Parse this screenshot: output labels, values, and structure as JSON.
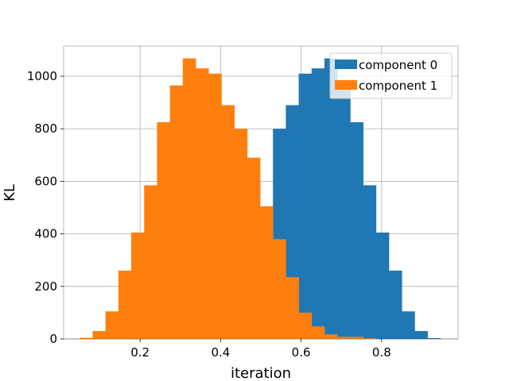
{
  "chart_data": {
    "type": "bar",
    "title": "",
    "xlabel": "iteration",
    "ylabel": "KL",
    "xlim": [
      0.01,
      0.99
    ],
    "ylim": [
      0,
      1115
    ],
    "grid": true,
    "legend_position": "top-right",
    "x_ticks": [
      0.2,
      0.4,
      0.6,
      0.8
    ],
    "x_tick_labels": [
      "0.2",
      "0.4",
      "0.6",
      "0.8"
    ],
    "y_ticks": [
      0,
      200,
      400,
      600,
      800,
      1000
    ],
    "y_tick_labels": [
      "0",
      "200",
      "400",
      "600",
      "800",
      "1000"
    ],
    "series": [
      {
        "name": "component 0",
        "color": "#1f77b4",
        "bins": [
          [
            0.282,
            0.314,
            4
          ],
          [
            0.314,
            0.346,
            40
          ],
          [
            0.346,
            0.378,
            130
          ],
          [
            0.378,
            0.41,
            290
          ],
          [
            0.41,
            0.442,
            460
          ],
          [
            0.442,
            0.474,
            560
          ],
          [
            0.474,
            0.498,
            600
          ],
          [
            0.498,
            0.53,
            470
          ],
          [
            0.53,
            0.562,
            800
          ],
          [
            0.562,
            0.594,
            890
          ],
          [
            0.594,
            0.626,
            1010
          ],
          [
            0.626,
            0.658,
            1030
          ],
          [
            0.658,
            0.69,
            1068
          ],
          [
            0.69,
            0.722,
            960
          ],
          [
            0.722,
            0.754,
            825
          ],
          [
            0.754,
            0.786,
            585
          ],
          [
            0.786,
            0.818,
            405
          ],
          [
            0.818,
            0.85,
            260
          ],
          [
            0.85,
            0.882,
            105
          ],
          [
            0.882,
            0.914,
            30
          ],
          [
            0.914,
            0.946,
            3
          ]
        ]
      },
      {
        "name": "component 1",
        "color": "#ff7f0e",
        "bins": [
          [
            0.05,
            0.082,
            4
          ],
          [
            0.082,
            0.114,
            30
          ],
          [
            0.114,
            0.146,
            105
          ],
          [
            0.146,
            0.178,
            260
          ],
          [
            0.178,
            0.21,
            405
          ],
          [
            0.21,
            0.242,
            585
          ],
          [
            0.242,
            0.274,
            825
          ],
          [
            0.274,
            0.306,
            965
          ],
          [
            0.306,
            0.338,
            1068
          ],
          [
            0.338,
            0.37,
            1030
          ],
          [
            0.37,
            0.402,
            1010
          ],
          [
            0.402,
            0.434,
            890
          ],
          [
            0.434,
            0.466,
            800
          ],
          [
            0.466,
            0.498,
            690
          ],
          [
            0.498,
            0.53,
            505
          ],
          [
            0.53,
            0.562,
            380
          ],
          [
            0.562,
            0.594,
            235
          ],
          [
            0.594,
            0.626,
            100
          ],
          [
            0.626,
            0.658,
            48
          ],
          [
            0.658,
            0.69,
            17
          ],
          [
            0.69,
            0.722,
            8
          ],
          [
            0.722,
            0.754,
            8
          ],
          [
            0.754,
            0.786,
            3
          ]
        ]
      }
    ]
  }
}
